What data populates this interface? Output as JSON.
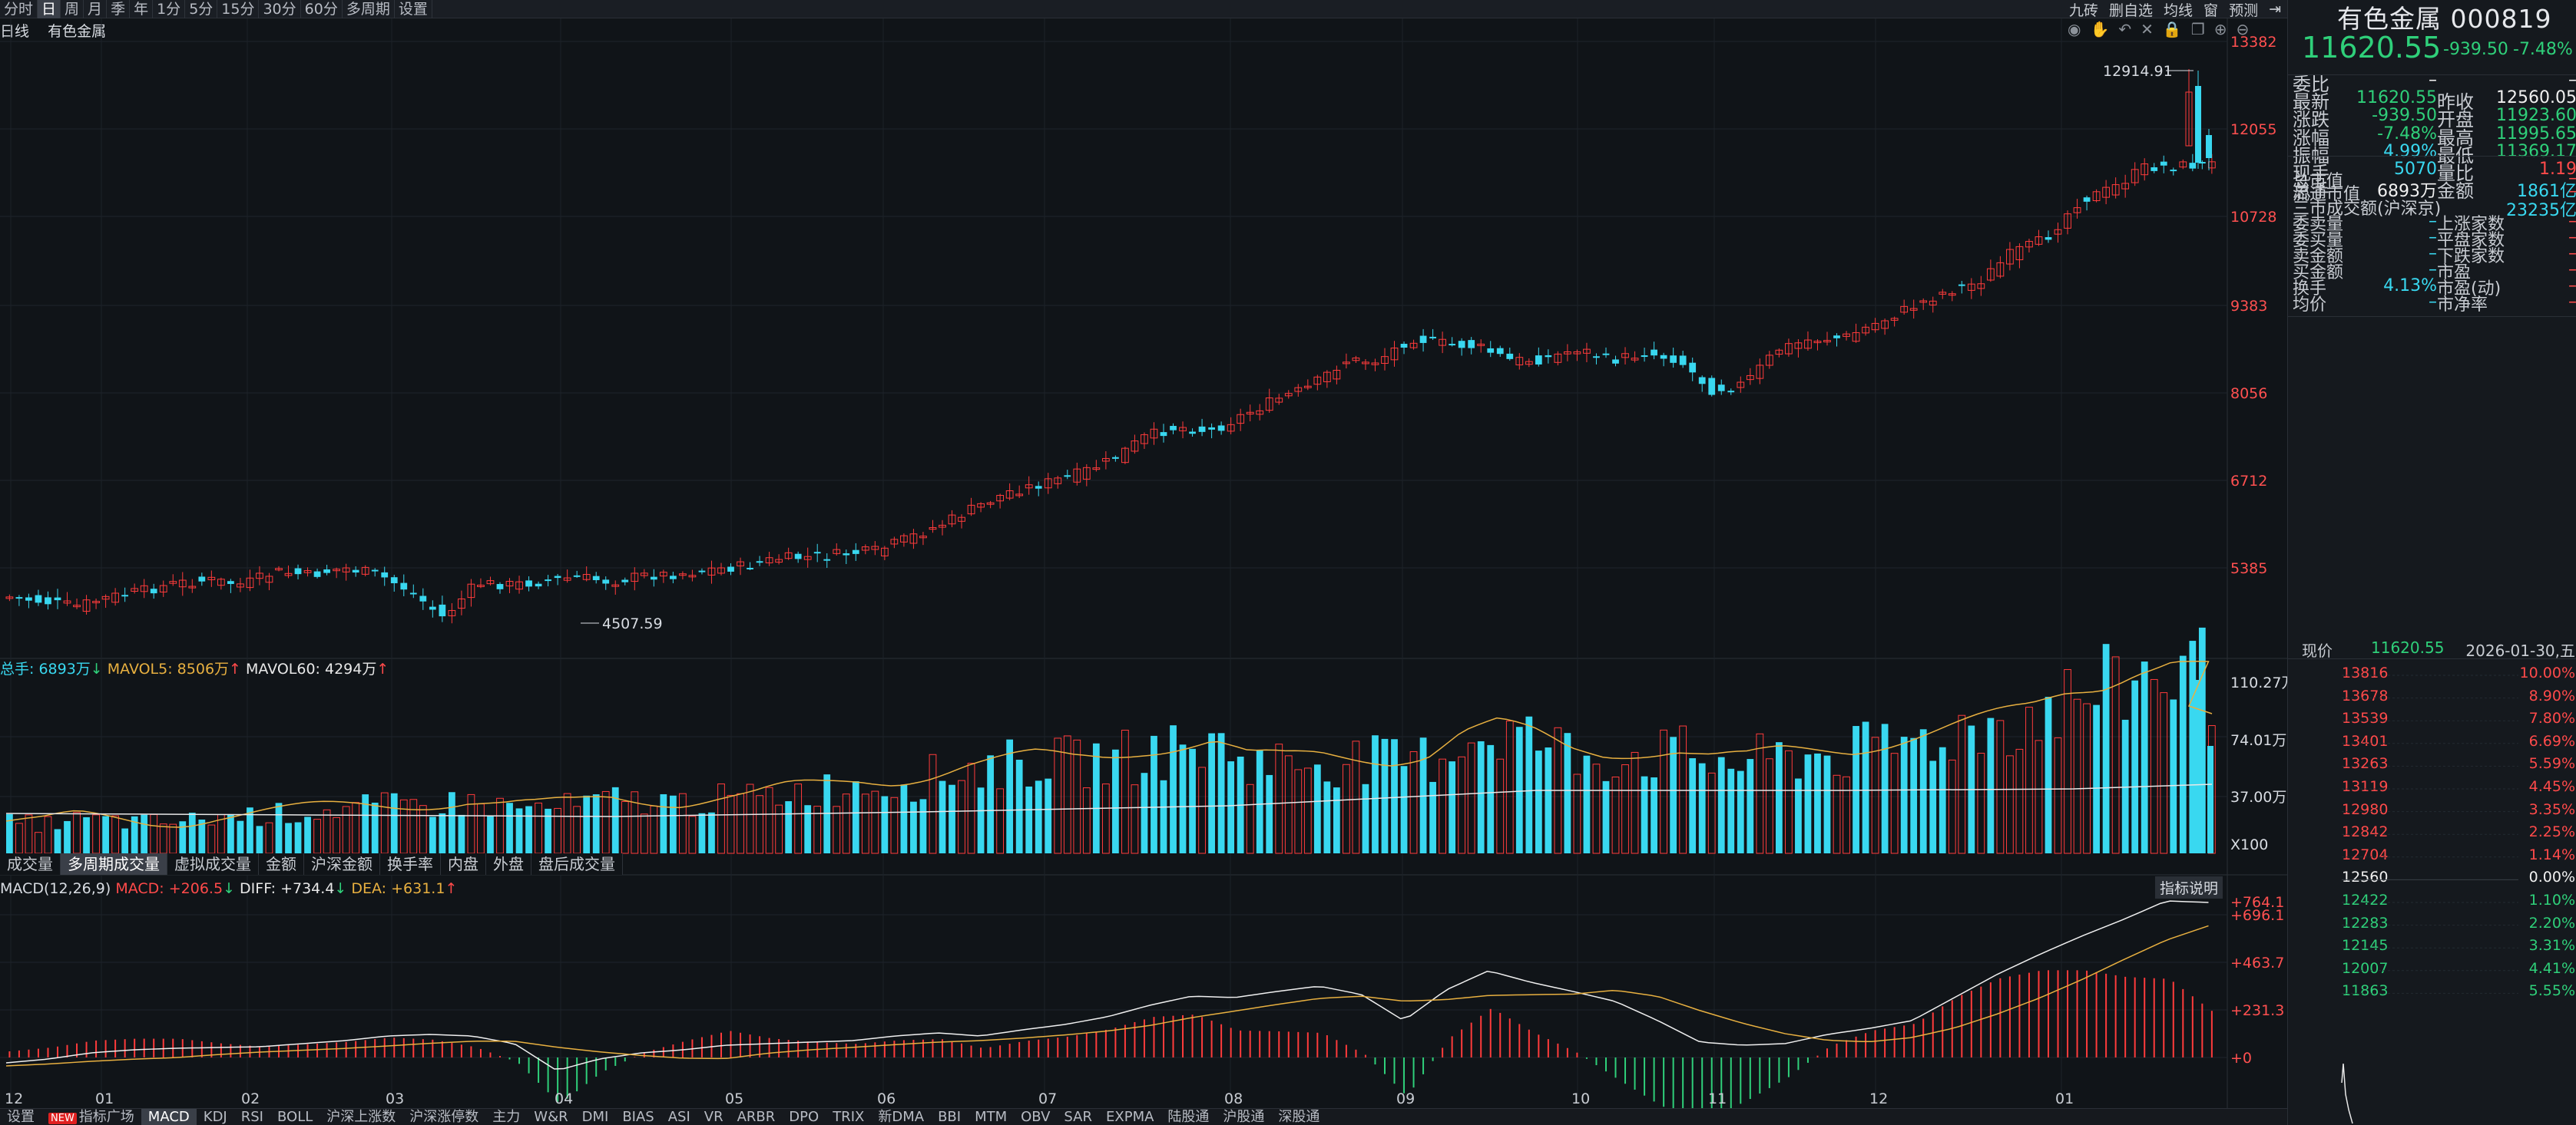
{
  "toolbar": {
    "periods": [
      {
        "label": "分时"
      },
      {
        "label": "日",
        "active": true
      },
      {
        "label": "周"
      },
      {
        "label": "月"
      },
      {
        "label": "季"
      },
      {
        "label": "年"
      },
      {
        "label": "1分"
      },
      {
        "label": "5分"
      },
      {
        "label": "15分"
      },
      {
        "label": "30分"
      },
      {
        "label": "60分"
      },
      {
        "label": "多周期"
      },
      {
        "label": "设置"
      }
    ],
    "tools": [
      "九砖",
      "删自选",
      "均线",
      "窗",
      "预测"
    ]
  },
  "chart_header": {
    "kline": "日线",
    "name": "有色金属"
  },
  "main_axis_labels": [
    "13382",
    "12055",
    "10728",
    "9383",
    "8056",
    "6712",
    "5385"
  ],
  "annotations": {
    "high": "12914.91",
    "low": "4507.59"
  },
  "volume_legend": {
    "total": "总手: 6893万",
    "mavol5": "MAVOL5: 8506万",
    "mavol60": "MAVOL60: 4294万",
    "arrow_down": "↓",
    "arrow_up": "↑"
  },
  "volume_axis_labels": [
    "110.27万",
    "74.01万",
    "37.00万",
    "X100"
  ],
  "volume_tabs": [
    {
      "label": "成交量"
    },
    {
      "label": "多周期成交量",
      "active": true
    },
    {
      "label": "虚拟成交量"
    },
    {
      "label": "金额"
    },
    {
      "label": "沪深金额"
    },
    {
      "label": "换手率"
    },
    {
      "label": "内盘"
    },
    {
      "label": "外盘"
    },
    {
      "label": "盘后成交量"
    }
  ],
  "macd_legend": {
    "name": "MACD(12,26,9)",
    "macd": "MACD: +206.5",
    "diff": "DIFF: +734.4",
    "dea": "DEA: +631.1",
    "arrow_down": "↓",
    "arrow_up": "↑"
  },
  "macd_help": "指标说明",
  "macd_axis_labels": [
    "+764.1",
    "+696.1",
    "+463.7",
    "+231.3",
    "+0"
  ],
  "month_labels": [
    "12",
    "01",
    "02",
    "03",
    "04",
    "05",
    "06",
    "07",
    "08",
    "09",
    "10",
    "11",
    "12",
    "01"
  ],
  "bottom_tabs": [
    {
      "label": "设置"
    },
    {
      "label": "指标广场",
      "badge": "NEW"
    },
    {
      "label": "MACD",
      "active": true
    },
    {
      "label": "KDJ"
    },
    {
      "label": "RSI"
    },
    {
      "label": "BOLL"
    },
    {
      "label": "沪深上涨数"
    },
    {
      "label": "沪深涨停数"
    },
    {
      "label": "主力"
    },
    {
      "label": "W&R"
    },
    {
      "label": "DMI"
    },
    {
      "label": "BIAS"
    },
    {
      "label": "ASI"
    },
    {
      "label": "VR"
    },
    {
      "label": "ARBR"
    },
    {
      "label": "DPO"
    },
    {
      "label": "TRIX"
    },
    {
      "label": "新DMA"
    },
    {
      "label": "BBI"
    },
    {
      "label": "MTM"
    },
    {
      "label": "OBV"
    },
    {
      "label": "SAR"
    },
    {
      "label": "EXPMA"
    },
    {
      "label": "陆股通"
    },
    {
      "label": "沪股通"
    },
    {
      "label": "深股通"
    }
  ],
  "quote": {
    "name": "有色金属 000819",
    "price": "11620.55",
    "change": "-939.50",
    "pct": "-7.48%",
    "rows": [
      {
        "l1": "委比",
        "v1": "–",
        "l2": "",
        "v2": "–",
        "c1": "white",
        "c2": "white"
      },
      {
        "l1": "最新",
        "v1": "11620.55",
        "l2": "昨收",
        "v2": "12560.05",
        "c1": "green",
        "c2": "white"
      },
      {
        "l1": "涨跌",
        "v1": "-939.50",
        "l2": "开盘",
        "v2": "11923.60",
        "c1": "green",
        "c2": "green"
      },
      {
        "l1": "涨幅",
        "v1": "-7.48%",
        "l2": "最高",
        "v2": "11995.65",
        "c1": "green",
        "c2": "green"
      },
      {
        "l1": "振幅",
        "v1": "4.99%",
        "l2": "最低",
        "v2": "11369.17",
        "c1": "cyan",
        "c2": "green"
      },
      {
        "l1": "现手",
        "v1": "5070",
        "l2": "量比",
        "v2": "1.19",
        "c1": "cyan",
        "c2": "red"
      },
      {
        "l1": "总手",
        "v1": "6893万",
        "l2": "金额",
        "v2": "1861亿",
        "c1": "white",
        "c2": "cyan"
      }
    ],
    "rows2": [
      {
        "l1": "总市值",
        "v1": "",
        "l2": "",
        "v2": "–"
      },
      {
        "l1": "流通市值",
        "v1": "",
        "l2": "",
        "v2": "–"
      },
      {
        "l1": "三市成交额(沪深京)",
        "v1": "",
        "l2": "",
        "v2": "23235亿"
      },
      {
        "l1": "委卖量",
        "v1": "–",
        "l2": "上涨家数",
        "v2": "–"
      },
      {
        "l1": "委买量",
        "v1": "–",
        "l2": "平盘家数",
        "v2": "–"
      },
      {
        "l1": "卖金额",
        "v1": "–",
        "l2": "下跌家数",
        "v2": "–"
      },
      {
        "l1": "买金额",
        "v1": "–",
        "l2": "市盈",
        "v2": "–"
      },
      {
        "l1": "换手",
        "v1": "4.13%",
        "l2": "市盈(动)",
        "v2": "–"
      },
      {
        "l1": "均价",
        "v1": "–",
        "l2": "市净率",
        "v2": "–"
      }
    ],
    "now_label": "现价",
    "now_price": "11620.55",
    "now_date": "2026-01-30,五",
    "ticks": [
      {
        "p": "13816",
        "c": "10.00%",
        "t": "red"
      },
      {
        "p": "13678",
        "c": "8.90%",
        "t": "red"
      },
      {
        "p": "13539",
        "c": "7.80%",
        "t": "red"
      },
      {
        "p": "13401",
        "c": "6.69%",
        "t": "red"
      },
      {
        "p": "13263",
        "c": "5.59%",
        "t": "red"
      },
      {
        "p": "13119",
        "c": "4.45%",
        "t": "red"
      },
      {
        "p": "12980",
        "c": "3.35%",
        "t": "red"
      },
      {
        "p": "12842",
        "c": "2.25%",
        "t": "red"
      },
      {
        "p": "12704",
        "c": "1.14%",
        "t": "red"
      },
      {
        "p": "12560",
        "c": "0.00%",
        "t": "white"
      },
      {
        "p": "12422",
        "c": "1.10%",
        "t": "green"
      },
      {
        "p": "12283",
        "c": "2.20%",
        "t": "green"
      },
      {
        "p": "12145",
        "c": "3.31%",
        "t": "green"
      },
      {
        "p": "12007",
        "c": "4.41%",
        "t": "green"
      },
      {
        "p": "11863",
        "c": "5.55%",
        "t": "green"
      }
    ]
  },
  "colors": {
    "up": "#ff3b3b",
    "down": "#39d8f0",
    "bg": "#101418",
    "grid": "#1f252c"
  }
}
